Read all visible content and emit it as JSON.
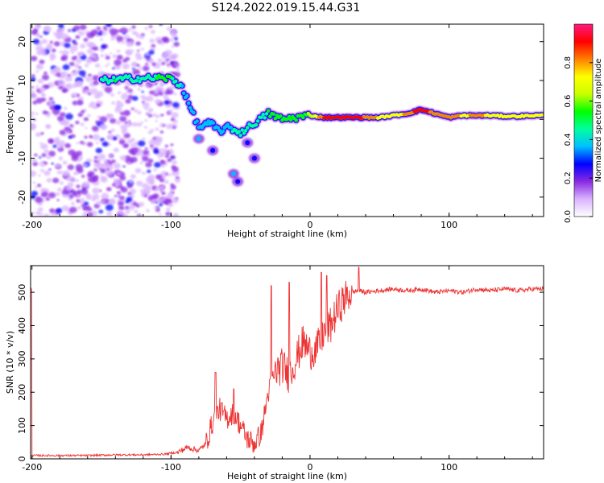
{
  "title": "S124.2022.019.15.44.G31",
  "colors": {
    "snr_line": "#ee3333",
    "axis": "#000000",
    "background": "#ffffff"
  },
  "chart_data": [
    {
      "type": "heatmap",
      "xlabel": "Height of straight line (km)",
      "ylabel": "Frequency (Hz)",
      "xlim": [
        -201,
        168
      ],
      "ylim": [
        -25,
        24.5
      ],
      "x_ticks": [
        -200,
        -100,
        0,
        100
      ],
      "y_ticks": [
        -20,
        -10,
        0,
        10,
        20
      ],
      "grid": false,
      "colorbar": {
        "label": "Normalized spectral amplitude",
        "range": [
          0,
          1
        ],
        "ticks": [
          "0.0",
          "0.2",
          "0.4",
          "0.6",
          "0.8"
        ],
        "palette": [
          "#ffffff",
          "#d9b3ff",
          "#8a2be2",
          "#0000ff",
          "#00bfff",
          "#00ffa0",
          "#00ff00",
          "#c8ff00",
          "#ffff00",
          "#ff8000",
          "#ff0000",
          "#ff1a80"
        ]
      },
      "ridge": [
        {
          "x": -150,
          "y": 10,
          "a": 0.45
        },
        {
          "x": -140,
          "y": 10.2,
          "a": 0.5
        },
        {
          "x": -130,
          "y": 10.5,
          "a": 0.45
        },
        {
          "x": -120,
          "y": 10.5,
          "a": 0.45
        },
        {
          "x": -110,
          "y": 10.7,
          "a": 0.5
        },
        {
          "x": -100,
          "y": 10.5,
          "a": 0.5
        },
        {
          "x": -92,
          "y": 8.5,
          "a": 0.4
        },
        {
          "x": -85,
          "y": 2,
          "a": 0.35
        },
        {
          "x": -80,
          "y": -2,
          "a": 0.4
        },
        {
          "x": -72,
          "y": -1,
          "a": 0.35
        },
        {
          "x": -65,
          "y": -3,
          "a": 0.4
        },
        {
          "x": -58,
          "y": -2,
          "a": 0.4
        },
        {
          "x": -50,
          "y": -3.5,
          "a": 0.45
        },
        {
          "x": -40,
          "y": -1,
          "a": 0.45
        },
        {
          "x": -30,
          "y": 1.5,
          "a": 0.5
        },
        {
          "x": -20,
          "y": 0,
          "a": 0.5
        },
        {
          "x": -10,
          "y": 0.5,
          "a": 0.55
        },
        {
          "x": 0,
          "y": 1,
          "a": 0.6
        },
        {
          "x": 10,
          "y": 0.5,
          "a": 0.9
        },
        {
          "x": 20,
          "y": 0.5,
          "a": 0.95
        },
        {
          "x": 30,
          "y": 0.5,
          "a": 0.95
        },
        {
          "x": 40,
          "y": 0.5,
          "a": 0.85
        },
        {
          "x": 50,
          "y": 0.5,
          "a": 0.75
        },
        {
          "x": 60,
          "y": 1,
          "a": 0.7
        },
        {
          "x": 70,
          "y": 1.5,
          "a": 0.8
        },
        {
          "x": 80,
          "y": 2.5,
          "a": 0.95
        },
        {
          "x": 90,
          "y": 1.5,
          "a": 0.8
        },
        {
          "x": 100,
          "y": 0.5,
          "a": 0.85
        },
        {
          "x": 110,
          "y": 1,
          "a": 0.75
        },
        {
          "x": 120,
          "y": 1,
          "a": 0.8
        },
        {
          "x": 130,
          "y": 1,
          "a": 0.75
        },
        {
          "x": 140,
          "y": 0.8,
          "a": 0.7
        },
        {
          "x": 150,
          "y": 0.8,
          "a": 0.7
        },
        {
          "x": 160,
          "y": 1,
          "a": 0.7
        },
        {
          "x": 168,
          "y": 1,
          "a": 0.7
        }
      ],
      "secondary_blobs": [
        {
          "x": -80,
          "y": -5,
          "a": 0.35
        },
        {
          "x": -70,
          "y": -8,
          "a": 0.3
        },
        {
          "x": -55,
          "y": -14,
          "a": 0.35
        },
        {
          "x": -52,
          "y": -16,
          "a": 0.3
        },
        {
          "x": -45,
          "y": -6,
          "a": 0.3
        },
        {
          "x": -40,
          "y": -10,
          "a": 0.25
        }
      ],
      "noise_region_x": [
        -200,
        -95
      ]
    },
    {
      "type": "line",
      "xlabel": "Height of straight line (km)",
      "ylabel": "SNR (10 * v/v)",
      "xlim": [
        -201,
        168
      ],
      "ylim": [
        0,
        580
      ],
      "x_ticks": [
        -200,
        -100,
        0,
        100
      ],
      "y_ticks": [
        0,
        100,
        200,
        300,
        400,
        500
      ],
      "grid": false,
      "series": [
        {
          "color": "#ee3333",
          "x": [
            -200,
            -180,
            -160,
            -140,
            -120,
            -105,
            -95,
            -88,
            -80,
            -75,
            -70,
            -65,
            -60,
            -55,
            -50,
            -45,
            -40,
            -35,
            -30,
            -25,
            -20,
            -15,
            -10,
            -5,
            0,
            5,
            10,
            15,
            20,
            25,
            30,
            35,
            40,
            50,
            60,
            70,
            80,
            90,
            100,
            110,
            120,
            130,
            140,
            150,
            160,
            168
          ],
          "values": [
            10,
            10,
            10,
            12,
            12,
            14,
            20,
            35,
            25,
            45,
            110,
            150,
            120,
            140,
            100,
            60,
            45,
            80,
            200,
            260,
            280,
            250,
            300,
            350,
            320,
            330,
            380,
            400,
            450,
            480,
            500,
            505,
            500,
            505,
            510,
            505,
            510,
            500,
            505,
            500,
            510,
            505,
            510,
            505,
            510,
            510
          ],
          "spikes": [
            {
              "x": -68,
              "y": 260
            },
            {
              "x": -55,
              "y": 210
            },
            {
              "x": -28,
              "y": 520
            },
            {
              "x": -15,
              "y": 530
            },
            {
              "x": 8,
              "y": 560
            },
            {
              "x": 12,
              "y": 550
            },
            {
              "x": 35,
              "y": 575
            }
          ]
        }
      ]
    }
  ]
}
